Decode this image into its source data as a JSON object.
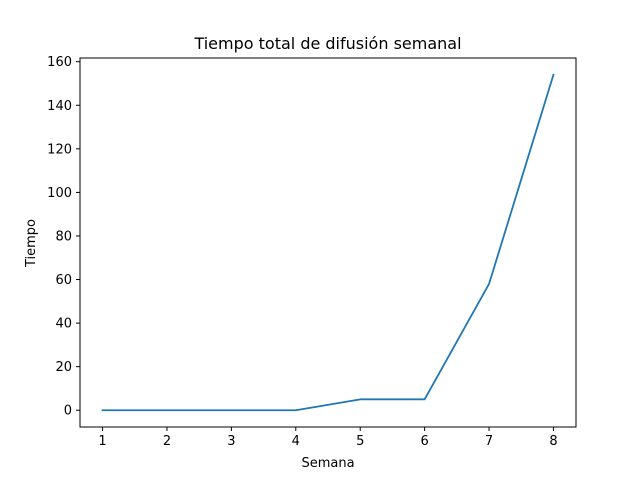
{
  "chart_data": {
    "type": "line",
    "title": "Tiempo total de difusión semanal",
    "xlabel": "Semana",
    "ylabel": "Tiempo",
    "x": [
      1,
      2,
      3,
      4,
      5,
      6,
      7,
      8
    ],
    "x_ticks": [
      "1",
      "2",
      "3",
      "4",
      "5",
      "6",
      "7",
      "8"
    ],
    "y_ticks": [
      "0",
      "20",
      "40",
      "60",
      "80",
      "100",
      "120",
      "140",
      "160"
    ],
    "xlim": [
      0.65,
      8.35
    ],
    "ylim": [
      -7.7,
      161.7
    ],
    "grid": false,
    "series": [
      {
        "values": [
          0,
          0,
          0,
          0,
          5,
          5,
          58,
          154
        ],
        "color": "#1f77b4"
      }
    ]
  }
}
